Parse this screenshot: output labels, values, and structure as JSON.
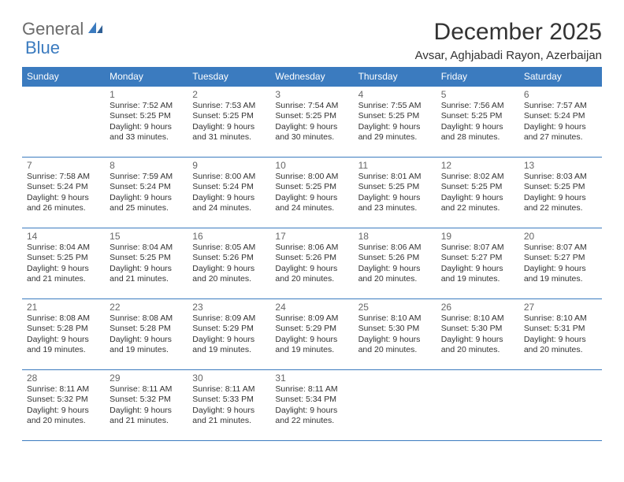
{
  "logo": {
    "text1": "General",
    "text2": "Blue"
  },
  "title": "December 2025",
  "location": "Avsar, Aghjabadi Rayon, Azerbaijan",
  "colors": {
    "header_bg": "#3b7bbf",
    "header_text": "#ffffff",
    "border": "#3b7bbf",
    "body_text": "#333333",
    "daynum": "#666666",
    "logo_gray": "#6b6b6b",
    "logo_blue": "#3b7bbf",
    "background": "#ffffff"
  },
  "typography": {
    "month_title_fontsize": 30,
    "location_fontsize": 15,
    "weekday_fontsize": 12,
    "daynum_fontsize": 12,
    "cell_fontsize": 10.5
  },
  "weekdays": [
    "Sunday",
    "Monday",
    "Tuesday",
    "Wednesday",
    "Thursday",
    "Friday",
    "Saturday"
  ],
  "weeks": [
    [
      {
        "day": "",
        "sunrise": "",
        "sunset": "",
        "daylight": ""
      },
      {
        "day": "1",
        "sunrise": "Sunrise: 7:52 AM",
        "sunset": "Sunset: 5:25 PM",
        "daylight": "Daylight: 9 hours and 33 minutes."
      },
      {
        "day": "2",
        "sunrise": "Sunrise: 7:53 AM",
        "sunset": "Sunset: 5:25 PM",
        "daylight": "Daylight: 9 hours and 31 minutes."
      },
      {
        "day": "3",
        "sunrise": "Sunrise: 7:54 AM",
        "sunset": "Sunset: 5:25 PM",
        "daylight": "Daylight: 9 hours and 30 minutes."
      },
      {
        "day": "4",
        "sunrise": "Sunrise: 7:55 AM",
        "sunset": "Sunset: 5:25 PM",
        "daylight": "Daylight: 9 hours and 29 minutes."
      },
      {
        "day": "5",
        "sunrise": "Sunrise: 7:56 AM",
        "sunset": "Sunset: 5:25 PM",
        "daylight": "Daylight: 9 hours and 28 minutes."
      },
      {
        "day": "6",
        "sunrise": "Sunrise: 7:57 AM",
        "sunset": "Sunset: 5:24 PM",
        "daylight": "Daylight: 9 hours and 27 minutes."
      }
    ],
    [
      {
        "day": "7",
        "sunrise": "Sunrise: 7:58 AM",
        "sunset": "Sunset: 5:24 PM",
        "daylight": "Daylight: 9 hours and 26 minutes."
      },
      {
        "day": "8",
        "sunrise": "Sunrise: 7:59 AM",
        "sunset": "Sunset: 5:24 PM",
        "daylight": "Daylight: 9 hours and 25 minutes."
      },
      {
        "day": "9",
        "sunrise": "Sunrise: 8:00 AM",
        "sunset": "Sunset: 5:24 PM",
        "daylight": "Daylight: 9 hours and 24 minutes."
      },
      {
        "day": "10",
        "sunrise": "Sunrise: 8:00 AM",
        "sunset": "Sunset: 5:25 PM",
        "daylight": "Daylight: 9 hours and 24 minutes."
      },
      {
        "day": "11",
        "sunrise": "Sunrise: 8:01 AM",
        "sunset": "Sunset: 5:25 PM",
        "daylight": "Daylight: 9 hours and 23 minutes."
      },
      {
        "day": "12",
        "sunrise": "Sunrise: 8:02 AM",
        "sunset": "Sunset: 5:25 PM",
        "daylight": "Daylight: 9 hours and 22 minutes."
      },
      {
        "day": "13",
        "sunrise": "Sunrise: 8:03 AM",
        "sunset": "Sunset: 5:25 PM",
        "daylight": "Daylight: 9 hours and 22 minutes."
      }
    ],
    [
      {
        "day": "14",
        "sunrise": "Sunrise: 8:04 AM",
        "sunset": "Sunset: 5:25 PM",
        "daylight": "Daylight: 9 hours and 21 minutes."
      },
      {
        "day": "15",
        "sunrise": "Sunrise: 8:04 AM",
        "sunset": "Sunset: 5:25 PM",
        "daylight": "Daylight: 9 hours and 21 minutes."
      },
      {
        "day": "16",
        "sunrise": "Sunrise: 8:05 AM",
        "sunset": "Sunset: 5:26 PM",
        "daylight": "Daylight: 9 hours and 20 minutes."
      },
      {
        "day": "17",
        "sunrise": "Sunrise: 8:06 AM",
        "sunset": "Sunset: 5:26 PM",
        "daylight": "Daylight: 9 hours and 20 minutes."
      },
      {
        "day": "18",
        "sunrise": "Sunrise: 8:06 AM",
        "sunset": "Sunset: 5:26 PM",
        "daylight": "Daylight: 9 hours and 20 minutes."
      },
      {
        "day": "19",
        "sunrise": "Sunrise: 8:07 AM",
        "sunset": "Sunset: 5:27 PM",
        "daylight": "Daylight: 9 hours and 19 minutes."
      },
      {
        "day": "20",
        "sunrise": "Sunrise: 8:07 AM",
        "sunset": "Sunset: 5:27 PM",
        "daylight": "Daylight: 9 hours and 19 minutes."
      }
    ],
    [
      {
        "day": "21",
        "sunrise": "Sunrise: 8:08 AM",
        "sunset": "Sunset: 5:28 PM",
        "daylight": "Daylight: 9 hours and 19 minutes."
      },
      {
        "day": "22",
        "sunrise": "Sunrise: 8:08 AM",
        "sunset": "Sunset: 5:28 PM",
        "daylight": "Daylight: 9 hours and 19 minutes."
      },
      {
        "day": "23",
        "sunrise": "Sunrise: 8:09 AM",
        "sunset": "Sunset: 5:29 PM",
        "daylight": "Daylight: 9 hours and 19 minutes."
      },
      {
        "day": "24",
        "sunrise": "Sunrise: 8:09 AM",
        "sunset": "Sunset: 5:29 PM",
        "daylight": "Daylight: 9 hours and 19 minutes."
      },
      {
        "day": "25",
        "sunrise": "Sunrise: 8:10 AM",
        "sunset": "Sunset: 5:30 PM",
        "daylight": "Daylight: 9 hours and 20 minutes."
      },
      {
        "day": "26",
        "sunrise": "Sunrise: 8:10 AM",
        "sunset": "Sunset: 5:30 PM",
        "daylight": "Daylight: 9 hours and 20 minutes."
      },
      {
        "day": "27",
        "sunrise": "Sunrise: 8:10 AM",
        "sunset": "Sunset: 5:31 PM",
        "daylight": "Daylight: 9 hours and 20 minutes."
      }
    ],
    [
      {
        "day": "28",
        "sunrise": "Sunrise: 8:11 AM",
        "sunset": "Sunset: 5:32 PM",
        "daylight": "Daylight: 9 hours and 20 minutes."
      },
      {
        "day": "29",
        "sunrise": "Sunrise: 8:11 AM",
        "sunset": "Sunset: 5:32 PM",
        "daylight": "Daylight: 9 hours and 21 minutes."
      },
      {
        "day": "30",
        "sunrise": "Sunrise: 8:11 AM",
        "sunset": "Sunset: 5:33 PM",
        "daylight": "Daylight: 9 hours and 21 minutes."
      },
      {
        "day": "31",
        "sunrise": "Sunrise: 8:11 AM",
        "sunset": "Sunset: 5:34 PM",
        "daylight": "Daylight: 9 hours and 22 minutes."
      },
      {
        "day": "",
        "sunrise": "",
        "sunset": "",
        "daylight": ""
      },
      {
        "day": "",
        "sunrise": "",
        "sunset": "",
        "daylight": ""
      },
      {
        "day": "",
        "sunrise": "",
        "sunset": "",
        "daylight": ""
      }
    ]
  ]
}
